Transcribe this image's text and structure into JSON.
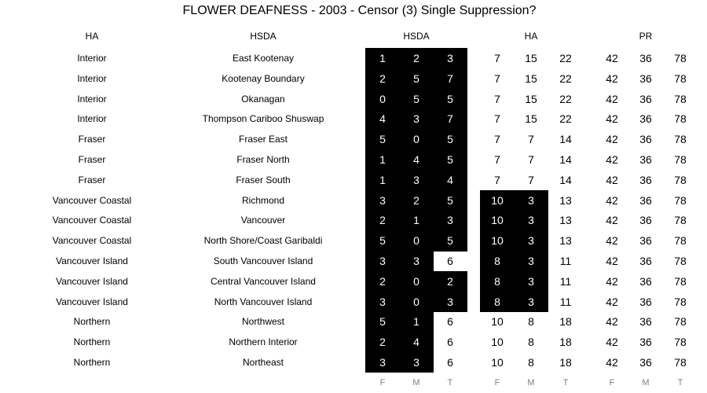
{
  "chart_data": {
    "type": "table",
    "title": "FLOWER DEAFNESS - 2003 - Censor (3) Single Suppression?",
    "column_headers": [
      "HA",
      "HSDA",
      "HSDA",
      "HA",
      "PR"
    ],
    "footer_labels": [
      "F",
      "M",
      "T",
      "F",
      "M",
      "T",
      "F",
      "M",
      "T"
    ],
    "rows": [
      {
        "ha": "Interior",
        "hsda": "East Kootenay",
        "values": [
          1,
          2,
          3,
          7,
          15,
          22,
          42,
          36,
          78
        ],
        "suppressed": [
          true,
          true,
          true,
          false,
          false,
          false,
          false,
          false,
          false
        ]
      },
      {
        "ha": "Interior",
        "hsda": "Kootenay Boundary",
        "values": [
          2,
          5,
          7,
          7,
          15,
          22,
          42,
          36,
          78
        ],
        "suppressed": [
          true,
          true,
          true,
          false,
          false,
          false,
          false,
          false,
          false
        ]
      },
      {
        "ha": "Interior",
        "hsda": "Okanagan",
        "values": [
          0,
          5,
          5,
          7,
          15,
          22,
          42,
          36,
          78
        ],
        "suppressed": [
          true,
          true,
          true,
          false,
          false,
          false,
          false,
          false,
          false
        ]
      },
      {
        "ha": "Interior",
        "hsda": "Thompson Cariboo Shuswap",
        "values": [
          4,
          3,
          7,
          7,
          15,
          22,
          42,
          36,
          78
        ],
        "suppressed": [
          true,
          true,
          true,
          false,
          false,
          false,
          false,
          false,
          false
        ]
      },
      {
        "ha": "Fraser",
        "hsda": "Fraser East",
        "values": [
          5,
          0,
          5,
          7,
          7,
          14,
          42,
          36,
          78
        ],
        "suppressed": [
          true,
          true,
          true,
          false,
          false,
          false,
          false,
          false,
          false
        ]
      },
      {
        "ha": "Fraser",
        "hsda": "Fraser North",
        "values": [
          1,
          4,
          5,
          7,
          7,
          14,
          42,
          36,
          78
        ],
        "suppressed": [
          true,
          true,
          true,
          false,
          false,
          false,
          false,
          false,
          false
        ]
      },
      {
        "ha": "Fraser",
        "hsda": "Fraser South",
        "values": [
          1,
          3,
          4,
          7,
          7,
          14,
          42,
          36,
          78
        ],
        "suppressed": [
          true,
          true,
          true,
          false,
          false,
          false,
          false,
          false,
          false
        ]
      },
      {
        "ha": "Vancouver Coastal",
        "hsda": "Richmond",
        "values": [
          3,
          2,
          5,
          10,
          3,
          13,
          42,
          36,
          78
        ],
        "suppressed": [
          true,
          true,
          true,
          true,
          true,
          false,
          false,
          false,
          false
        ]
      },
      {
        "ha": "Vancouver Coastal",
        "hsda": "Vancouver",
        "values": [
          2,
          1,
          3,
          10,
          3,
          13,
          42,
          36,
          78
        ],
        "suppressed": [
          true,
          true,
          true,
          true,
          true,
          false,
          false,
          false,
          false
        ]
      },
      {
        "ha": "Vancouver Coastal",
        "hsda": "North Shore/Coast Garibaldi",
        "values": [
          5,
          0,
          5,
          10,
          3,
          13,
          42,
          36,
          78
        ],
        "suppressed": [
          true,
          true,
          true,
          true,
          true,
          false,
          false,
          false,
          false
        ]
      },
      {
        "ha": "Vancouver Island",
        "hsda": "South Vancouver Island",
        "values": [
          3,
          3,
          6,
          8,
          3,
          11,
          42,
          36,
          78
        ],
        "suppressed": [
          true,
          true,
          false,
          true,
          true,
          false,
          false,
          false,
          false
        ]
      },
      {
        "ha": "Vancouver Island",
        "hsda": "Central Vancouver Island",
        "values": [
          2,
          0,
          2,
          8,
          3,
          11,
          42,
          36,
          78
        ],
        "suppressed": [
          true,
          true,
          true,
          true,
          true,
          false,
          false,
          false,
          false
        ]
      },
      {
        "ha": "Vancouver Island",
        "hsda": "North Vancouver Island",
        "values": [
          3,
          0,
          3,
          8,
          3,
          11,
          42,
          36,
          78
        ],
        "suppressed": [
          true,
          true,
          true,
          true,
          true,
          false,
          false,
          false,
          false
        ]
      },
      {
        "ha": "Northern",
        "hsda": "Northwest",
        "values": [
          5,
          1,
          6,
          10,
          8,
          18,
          42,
          36,
          78
        ],
        "suppressed": [
          true,
          true,
          false,
          false,
          false,
          false,
          false,
          false,
          false
        ]
      },
      {
        "ha": "Northern",
        "hsda": "Northern Interior",
        "values": [
          2,
          4,
          6,
          10,
          8,
          18,
          42,
          36,
          78
        ],
        "suppressed": [
          true,
          true,
          false,
          false,
          false,
          false,
          false,
          false,
          false
        ]
      },
      {
        "ha": "Northern",
        "hsda": "Northeast",
        "values": [
          3,
          3,
          6,
          10,
          8,
          18,
          42,
          36,
          78
        ],
        "suppressed": [
          true,
          true,
          false,
          false,
          false,
          false,
          false,
          false,
          false
        ]
      }
    ],
    "suppressed_fill": "#000000",
    "suppressed_text": "#ffffff",
    "footer_color": "#7f7f7f"
  }
}
